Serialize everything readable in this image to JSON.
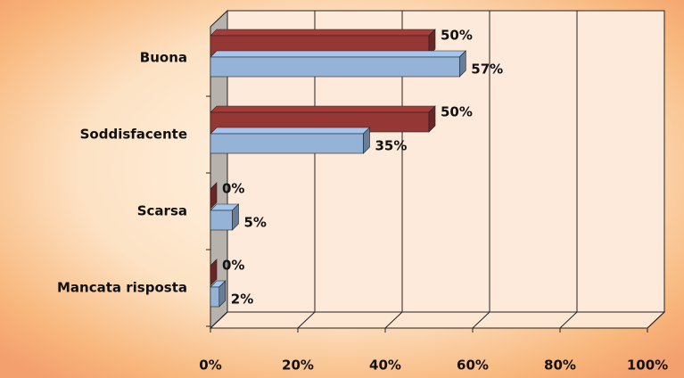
{
  "chart_data": {
    "type": "bar3d_horizontal",
    "categories": [
      "Buona",
      "Soddisfacente",
      "Scarsa",
      "Mancata risposta"
    ],
    "series": [
      {
        "color": "#953735",
        "values": [
          50,
          50,
          0,
          0
        ],
        "value_labels": [
          "50%",
          "50%",
          "0%",
          "0%"
        ]
      },
      {
        "color": "#95b3d7",
        "values": [
          57,
          35,
          5,
          2
        ],
        "value_labels": [
          "57%",
          "35%",
          "5%",
          "2%"
        ]
      }
    ],
    "xlim": [
      0,
      100
    ],
    "xticks": [
      {
        "value": 0,
        "label": "0%"
      },
      {
        "value": 20,
        "label": "20%"
      },
      {
        "value": 40,
        "label": "40%"
      },
      {
        "value": 60,
        "label": "60%"
      },
      {
        "value": 80,
        "label": "80%"
      },
      {
        "value": 100,
        "label": "100%"
      }
    ],
    "grid": true
  }
}
